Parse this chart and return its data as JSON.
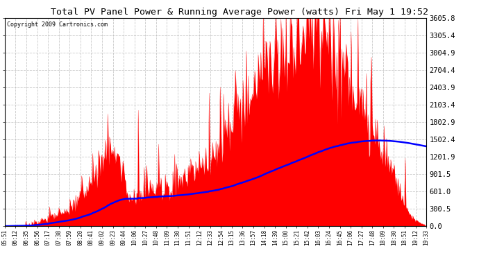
{
  "title": "Total PV Panel Power & Running Average Power (watts) Fri May 1 19:52",
  "copyright_text": "Copyright 2009 Cartronics.com",
  "background_color": "#ffffff",
  "plot_bg_color": "#ffffff",
  "grid_color": "#bbbbbb",
  "bar_color": "#ff0000",
  "line_color": "#0000ff",
  "yticks": [
    0.0,
    300.5,
    601.0,
    901.5,
    1201.9,
    1502.4,
    1802.9,
    2103.4,
    2403.9,
    2704.4,
    3004.9,
    3305.4,
    3605.8
  ],
  "ymax": 3605.8,
  "x_labels": [
    "05:51",
    "06:12",
    "06:35",
    "06:56",
    "07:17",
    "07:38",
    "07:59",
    "08:20",
    "08:41",
    "09:02",
    "09:23",
    "09:44",
    "10:06",
    "10:27",
    "10:48",
    "11:09",
    "11:30",
    "11:51",
    "12:12",
    "12:33",
    "12:54",
    "13:15",
    "13:36",
    "13:57",
    "14:18",
    "14:39",
    "15:00",
    "15:21",
    "15:42",
    "16:03",
    "16:24",
    "16:45",
    "17:06",
    "17:27",
    "17:48",
    "18:09",
    "18:30",
    "18:51",
    "19:12",
    "19:33"
  ],
  "n_points": 500,
  "figsize": [
    6.9,
    3.75
  ],
  "dpi": 100
}
